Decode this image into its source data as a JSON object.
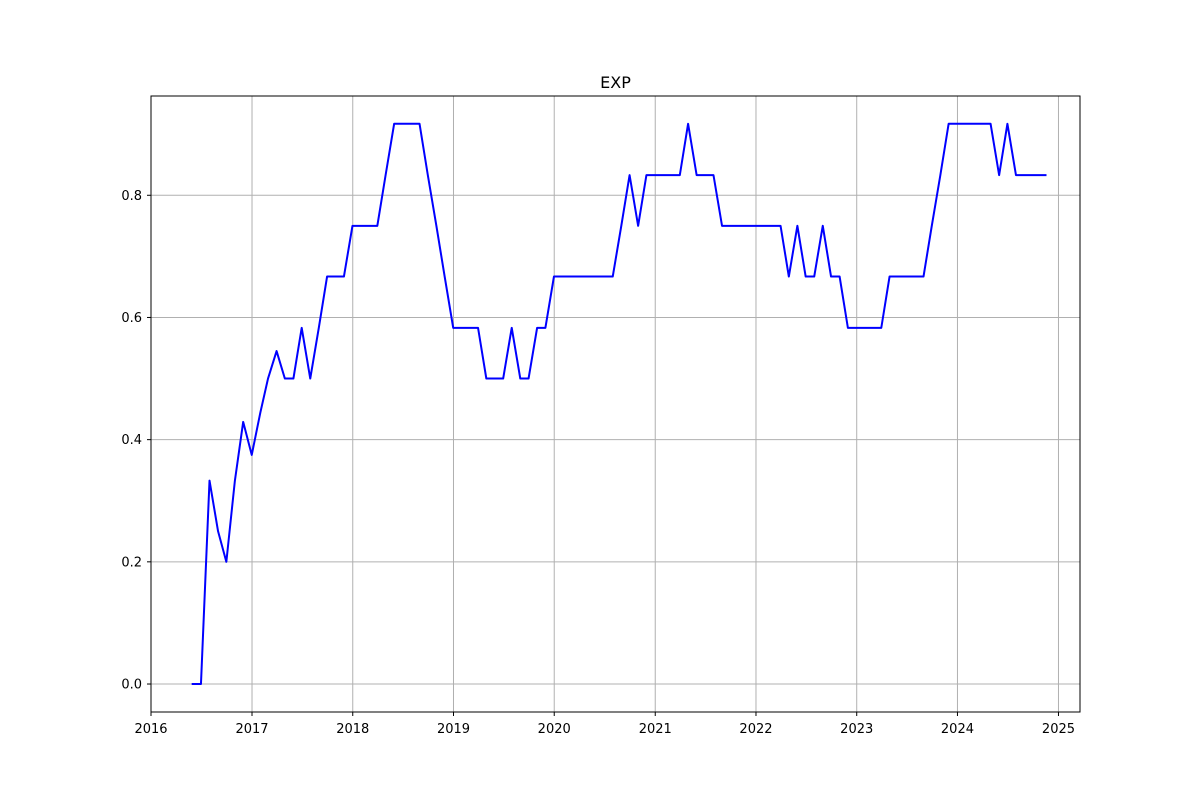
{
  "chart_data": {
    "type": "line",
    "title": "EXP",
    "xlabel": "",
    "ylabel": "",
    "x_axis_type": "date",
    "xlim": [
      "2016-01-01",
      "2025-03-20"
    ],
    "ylim": [
      -0.0458,
      0.9625
    ],
    "x_ticks": [
      "2016-01-01",
      "2017-01-01",
      "2018-01-01",
      "2019-01-01",
      "2020-01-01",
      "2021-01-01",
      "2022-01-01",
      "2023-01-01",
      "2024-01-01",
      "2025-01-01"
    ],
    "x_tick_labels": [
      "2016",
      "2017",
      "2018",
      "2019",
      "2020",
      "2021",
      "2022",
      "2023",
      "2024",
      "2025"
    ],
    "y_ticks": [
      0.0,
      0.2,
      0.4,
      0.6,
      0.8
    ],
    "y_tick_labels": [
      "0.0",
      "0.2",
      "0.4",
      "0.6",
      "0.8"
    ],
    "grid": true,
    "legend": "none",
    "series": [
      {
        "color": "#0000ff",
        "x": [
          "2016-05-31",
          "2016-06-30",
          "2016-07-31",
          "2016-08-31",
          "2016-09-30",
          "2016-10-31",
          "2016-11-30",
          "2016-12-31",
          "2017-01-31",
          "2017-02-28",
          "2017-03-31",
          "2017-04-30",
          "2017-05-31",
          "2017-06-30",
          "2017-07-31",
          "2017-08-31",
          "2017-09-30",
          "2017-10-31",
          "2017-11-30",
          "2017-12-31",
          "2018-01-31",
          "2018-02-28",
          "2018-03-31",
          "2018-04-30",
          "2018-05-31",
          "2018-06-30",
          "2018-07-31",
          "2018-08-31",
          "2018-09-30",
          "2018-10-31",
          "2018-11-30",
          "2018-12-31",
          "2019-01-31",
          "2019-02-28",
          "2019-03-31",
          "2019-04-30",
          "2019-05-31",
          "2019-06-30",
          "2019-07-31",
          "2019-08-31",
          "2019-09-30",
          "2019-10-31",
          "2019-11-30",
          "2019-12-31",
          "2020-01-31",
          "2020-02-29",
          "2020-03-31",
          "2020-04-30",
          "2020-05-31",
          "2020-06-30",
          "2020-07-31",
          "2020-08-31",
          "2020-09-30",
          "2020-10-31",
          "2020-11-30",
          "2020-12-31",
          "2021-01-31",
          "2021-02-28",
          "2021-03-31",
          "2021-04-30",
          "2021-05-31",
          "2021-06-30",
          "2021-07-31",
          "2021-08-31",
          "2021-09-30",
          "2021-10-31",
          "2021-11-30",
          "2021-12-31",
          "2022-01-31",
          "2022-02-28",
          "2022-03-31",
          "2022-04-30",
          "2022-05-31",
          "2022-06-30",
          "2022-07-31",
          "2022-08-31",
          "2022-09-30",
          "2022-10-31",
          "2022-11-30",
          "2022-12-31",
          "2023-01-31",
          "2023-02-28",
          "2023-03-31",
          "2023-04-30",
          "2023-05-31",
          "2023-06-30",
          "2023-07-31",
          "2023-08-31",
          "2023-09-30",
          "2023-10-31",
          "2023-11-30",
          "2023-12-31",
          "2024-01-31",
          "2024-02-29",
          "2024-03-31",
          "2024-04-30",
          "2024-05-31",
          "2024-06-30",
          "2024-07-31",
          "2024-08-31",
          "2024-09-30",
          "2024-10-31",
          "2024-11-15"
        ],
        "y": [
          0.0,
          0.0,
          0.333,
          0.25,
          0.2,
          0.333,
          0.429,
          0.375,
          0.444,
          0.5,
          0.545,
          0.5,
          0.5,
          0.583,
          0.5,
          0.583,
          0.667,
          0.667,
          0.667,
          0.75,
          0.75,
          0.75,
          0.75,
          0.833,
          0.917,
          0.917,
          0.917,
          0.917,
          0.833,
          0.75,
          0.667,
          0.583,
          0.583,
          0.583,
          0.583,
          0.5,
          0.5,
          0.5,
          0.583,
          0.5,
          0.5,
          0.583,
          0.583,
          0.667,
          0.667,
          0.667,
          0.667,
          0.667,
          0.667,
          0.667,
          0.667,
          0.75,
          0.833,
          0.75,
          0.833,
          0.833,
          0.833,
          0.833,
          0.833,
          0.917,
          0.833,
          0.833,
          0.833,
          0.75,
          0.75,
          0.75,
          0.75,
          0.75,
          0.75,
          0.75,
          0.75,
          0.667,
          0.75,
          0.667,
          0.667,
          0.75,
          0.667,
          0.667,
          0.583,
          0.583,
          0.583,
          0.583,
          0.583,
          0.667,
          0.667,
          0.667,
          0.667,
          0.667,
          0.75,
          0.833,
          0.917,
          0.917,
          0.917,
          0.917,
          0.917,
          0.917,
          0.833,
          0.917,
          0.833,
          0.833,
          0.833,
          0.833,
          0.833
        ]
      }
    ]
  }
}
